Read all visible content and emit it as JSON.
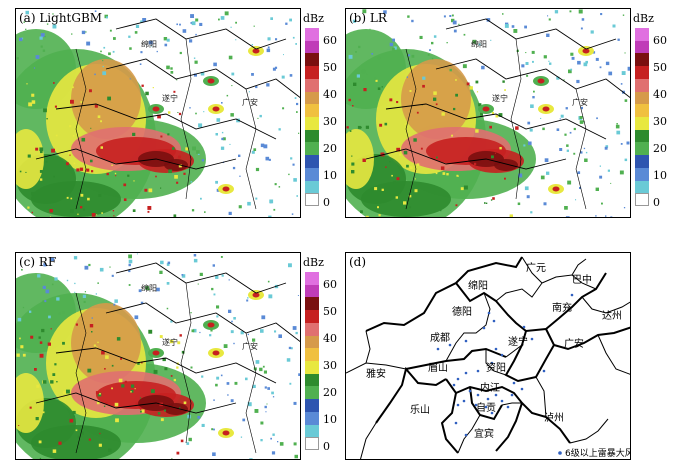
{
  "panels": [
    {
      "label": "(a) LightGBM"
    },
    {
      "label": "(b) LR"
    },
    {
      "label": "(c) RF"
    },
    {
      "label": "(d)"
    }
  ],
  "colorbar": {
    "unit": "dBz",
    "ticks": [
      "60",
      "50",
      "40",
      "30",
      "20",
      "10",
      "0"
    ],
    "colors": [
      "#e070e0",
      "#c03cb8",
      "#7a1010",
      "#c62020",
      "#e07070",
      "#d69a4a",
      "#f0c040",
      "#e8e840",
      "#2e8b2e",
      "#50b050",
      "#2e55b0",
      "#5a8ad6",
      "#6acad6",
      "#ffffff"
    ]
  },
  "radar_cities": [
    "绵阳",
    "遂宁",
    "广安"
  ],
  "map_cities": [
    "广元",
    "巴中",
    "绵阳",
    "德阳",
    "南充",
    "达州",
    "成都",
    "遂宁",
    "广安",
    "雅安",
    "资阳",
    "眉山",
    "内江",
    "乐山",
    "自贡",
    "泸州",
    "宜宾"
  ],
  "legend": {
    "marker": "6级以上雷暴大风"
  }
}
